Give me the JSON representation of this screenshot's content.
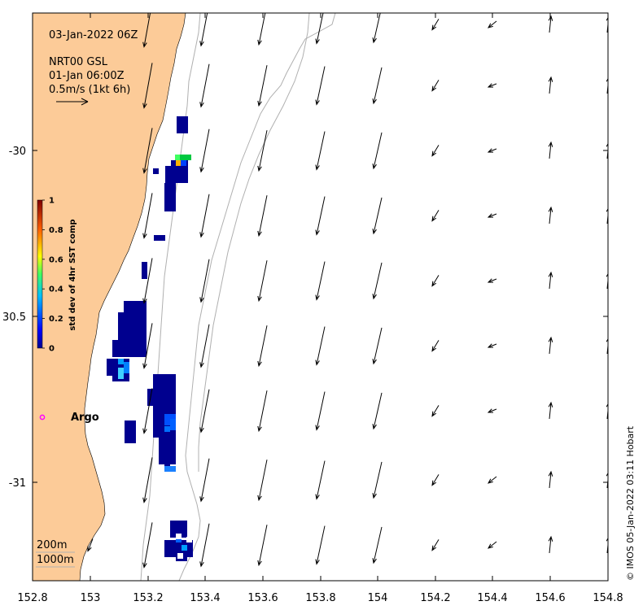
{
  "header": {
    "date_label": "03-Jan-2022 06Z",
    "product_label": "NRT00 GSL",
    "product_time": "01-Jan 06:00Z",
    "scale_label": "0.5m/s (1kt 6h)"
  },
  "axes": {
    "x_ticks": [
      "152.8",
      "153",
      "153.2",
      "153.4",
      "153.6",
      "153.8",
      "154",
      "154.2",
      "154.4",
      "154.6",
      "154.8"
    ],
    "y_ticks": [
      "-30",
      "30.5",
      "-31"
    ]
  },
  "colorbar": {
    "label": "std dev of 4hr SST comp",
    "ticks": [
      "0",
      "0.2",
      "0.4",
      "0.6",
      "0.8",
      "1"
    ]
  },
  "argo": {
    "label": "Argo",
    "marker_color": "#ff00ff"
  },
  "contours": {
    "label_200": "200m",
    "label_1000": "1000m"
  },
  "credit": "© IMOS 05-Jan-2022 03:11 Hobart",
  "colors": {
    "land": "#fccb98",
    "ocean": "#ffffff",
    "contour": "#b0b0b0"
  }
}
